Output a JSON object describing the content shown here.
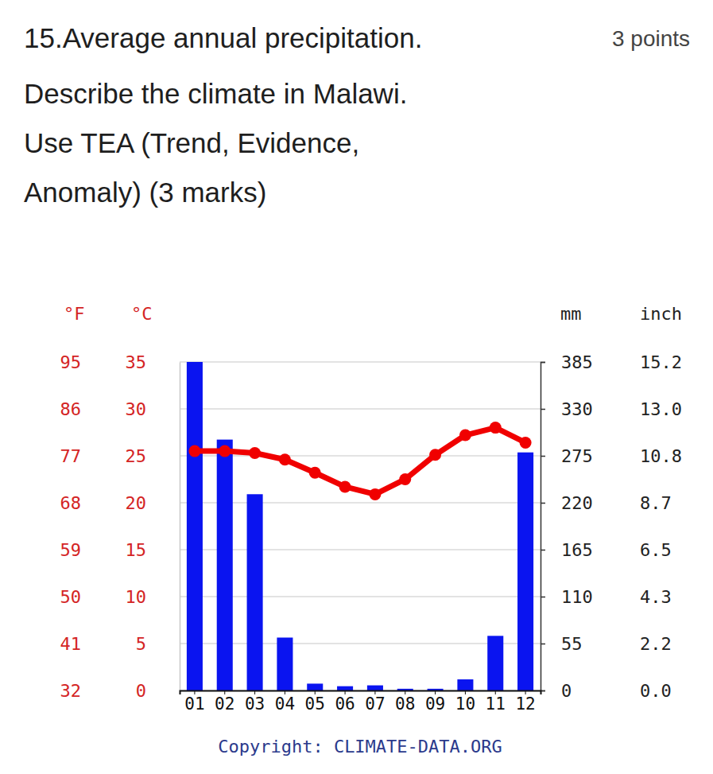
{
  "question": {
    "points": "3 points",
    "lines": [
      "Describe the climate in Malawi.",
      "Use TEA (Trend, Evidence,",
      "Anomaly) (3 marks)"
    ]
  },
  "chart_data": {
    "type": "bar",
    "title": "15.Average annual precipitation.",
    "categories": [
      "01",
      "02",
      "03",
      "04",
      "05",
      "06",
      "07",
      "08",
      "09",
      "10",
      "11",
      "12"
    ],
    "series": [
      {
        "type": "bar",
        "color": "#0a14f0",
        "axis": "y2",
        "values": [
          385,
          294,
          230,
          62,
          8,
          5,
          6,
          2,
          2,
          13,
          64,
          279
        ]
      },
      {
        "type": "line",
        "color": "#f00000",
        "marker": "circle",
        "values": [
          25.5,
          25.5,
          25.3,
          24.6,
          23.2,
          21.7,
          20.9,
          22.5,
          25.1,
          27.2,
          28.0,
          26.4
        ]
      }
    ],
    "ylabel": "°C",
    "ylim": [
      0,
      35
    ],
    "yticks": [
      0,
      5,
      10,
      15,
      20,
      25,
      30,
      35
    ],
    "y_alt": {
      "label": "°F",
      "ticks": [
        {
          "value": 0,
          "label": "32"
        },
        {
          "value": 5,
          "label": "41"
        },
        {
          "value": 10,
          "label": "50"
        },
        {
          "value": 15,
          "label": "59"
        },
        {
          "value": 20,
          "label": "68"
        },
        {
          "value": 25,
          "label": "77"
        },
        {
          "value": 30,
          "label": "86"
        },
        {
          "value": 35,
          "label": "95"
        }
      ]
    },
    "y2label": "mm",
    "y2lim": [
      0,
      385
    ],
    "y2ticks": [
      0,
      55,
      110,
      165,
      220,
      275,
      330,
      385
    ],
    "y2_alt": {
      "label": "inch",
      "ticks": [
        {
          "value": 0,
          "label": "0.0"
        },
        {
          "value": 55,
          "label": "2.2"
        },
        {
          "value": 110,
          "label": "4.3"
        },
        {
          "value": 165,
          "label": "6.5"
        },
        {
          "value": 220,
          "label": "8.7"
        },
        {
          "value": 275,
          "label": "10.8"
        },
        {
          "value": 330,
          "label": "13.0"
        },
        {
          "value": 385,
          "label": "15.2"
        }
      ]
    },
    "grid": true,
    "caption": "Copyright: CLIMATE-DATA.ORG"
  }
}
